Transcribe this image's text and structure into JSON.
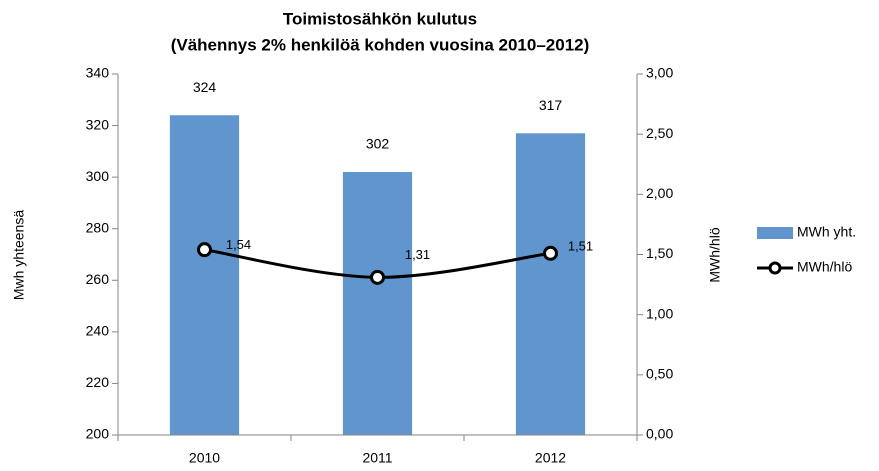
{
  "chart_data": {
    "type": "bar_line",
    "title": "Toimistosähkön kulutus",
    "subtitle": "(Vähennys 2% henkilöä kohden vuosina 2010–2012)",
    "y_label": "Mwh yhteensä",
    "y2_label": "MWh/hlö",
    "categories": [
      "2010",
      "2011",
      "2012"
    ],
    "series": [
      {
        "name": "MWh yht.",
        "type": "bar",
        "color": "#6096cd",
        "values": [
          324,
          302,
          317
        ]
      },
      {
        "name": "MWh/hlö",
        "type": "line",
        "axis": "y2",
        "color": "#000000",
        "values": [
          1.54,
          1.31,
          1.51
        ],
        "value_labels": [
          "1,54",
          "1,31",
          "1,51"
        ]
      }
    ],
    "ylim": [
      200,
      340
    ],
    "yticks": [
      200,
      220,
      240,
      260,
      280,
      300,
      320,
      340
    ],
    "y2lim": [
      0,
      3
    ],
    "y2ticks": [
      {
        "value": 0,
        "label": "0,00"
      },
      {
        "value": 0.5,
        "label": "0,50"
      },
      {
        "value": 1,
        "label": "1,00"
      },
      {
        "value": 1.5,
        "label": "1,50"
      },
      {
        "value": 2,
        "label": "2,00"
      },
      {
        "value": 2.5,
        "label": "2,50"
      },
      {
        "value": 3,
        "label": "3,00"
      }
    ],
    "legend": "right",
    "grid": false
  }
}
